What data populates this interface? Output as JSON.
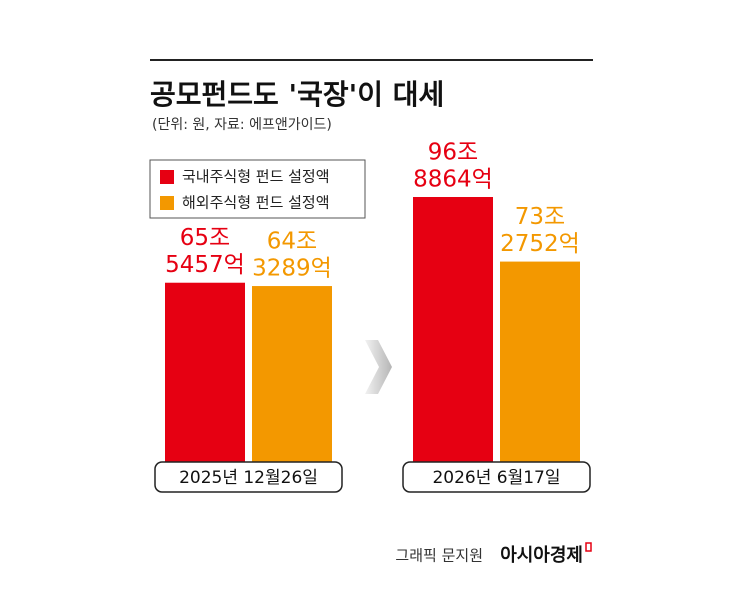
{
  "chart_data": {
    "type": "bar",
    "title": "공모펀드도 '국장'이 대세",
    "subtitle": "(단위: 원, 자료: 에프앤가이드)",
    "categories": [
      "2025년 12월26일",
      "2026년 6월17일"
    ],
    "series": [
      {
        "name": "국내주식형 펀드 설정액",
        "color": "#e60012",
        "values": [
          655457,
          968864
        ],
        "value_labels": [
          [
            "65조",
            "5457억"
          ],
          [
            "96조",
            "8864억"
          ]
        ]
      },
      {
        "name": "해외주식형 펀드 설정액",
        "color": "#f39800",
        "values": [
          643289,
          732752
        ],
        "value_labels": [
          [
            "64조",
            "3289억"
          ],
          [
            "73조",
            "2752억"
          ]
        ]
      }
    ],
    "credit": "그래픽 문지원",
    "brand": "아시아경제"
  }
}
